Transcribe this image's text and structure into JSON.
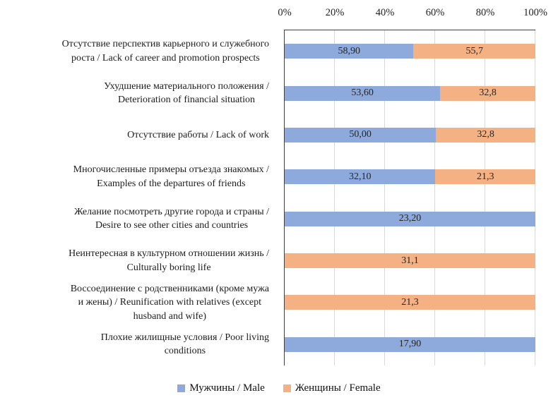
{
  "chart_data": {
    "type": "bar",
    "subtype": "stacked-100-percent",
    "orientation": "horizontal",
    "title": "",
    "x_axis": {
      "position": "top",
      "ticks": [
        "0%",
        "20%",
        "40%",
        "60%",
        "80%",
        "100%"
      ],
      "range": [
        0,
        100
      ],
      "gridlines": true
    },
    "colors": {
      "male": "#8EA9DB",
      "female": "#F4B183",
      "gridline": "#D9D9D9",
      "axis_line": "#404040",
      "text": "#1C1C1C"
    },
    "legend": {
      "position": "bottom",
      "items": [
        {
          "series": "male",
          "label": "Мужчины / Male"
        },
        {
          "series": "female",
          "label": "Женщины / Female"
        }
      ]
    },
    "rows": [
      {
        "category": "Отсутствие перспектив карьерного и служебного роста / Lack of career and promotion prospects",
        "category_lines": [
          "Отсутствие перспектив карьерного и служебного",
          "роста / Lack of career and promotion prospects"
        ],
        "segments": [
          {
            "series": "male",
            "value": 58.9,
            "label": "58,90"
          },
          {
            "series": "female",
            "value": 55.7,
            "label": "55,7"
          }
        ]
      },
      {
        "category": "Ухудшение материального положения / Deterioration of financial situation",
        "category_lines": [
          "Ухудшение материального положения /",
          "Deterioration of financial situation"
        ],
        "segments": [
          {
            "series": "male",
            "value": 53.6,
            "label": "53,60"
          },
          {
            "series": "female",
            "value": 32.8,
            "label": "32,8"
          }
        ]
      },
      {
        "category": "Отсутствие работы / Lack of work",
        "category_lines": [
          "Отсутствие работы / Lack of work"
        ],
        "segments": [
          {
            "series": "male",
            "value": 50.0,
            "label": "50,00"
          },
          {
            "series": "female",
            "value": 32.8,
            "label": "32,8"
          }
        ]
      },
      {
        "category": "Многочисленные примеры отъезда знакомых / Examples of the departures of friends",
        "category_lines": [
          "Многочисленные примеры отъезда знакомых /",
          "Examples of the departures of friends"
        ],
        "segments": [
          {
            "series": "male",
            "value": 32.1,
            "label": "32,10"
          },
          {
            "series": "female",
            "value": 21.3,
            "label": "21,3"
          }
        ]
      },
      {
        "category": "Желание посмотреть другие города и страны / Desire to see other cities and countries",
        "category_lines": [
          "Желание посмотреть другие города и страны /",
          "Desire to see other cities and countries"
        ],
        "segments": [
          {
            "series": "male",
            "value": 23.2,
            "label": "23,20"
          }
        ]
      },
      {
        "category": "Неинтересная в культурном отношении жизнь / Culturally boring life",
        "category_lines": [
          "Неинтересная в культурном отношении жизнь /",
          "Culturally boring life"
        ],
        "segments": [
          {
            "series": "female",
            "value": 31.1,
            "label": "31,1"
          }
        ]
      },
      {
        "category": "Воссоединение с родственниками (кроме мужа и жены) / Reunification with relatives (except husband and wife)",
        "category_lines": [
          "Воссоединение с родственниками (кроме мужа",
          "и жены) / Reunification with relatives (except",
          "husband and wife)"
        ],
        "segments": [
          {
            "series": "female",
            "value": 21.3,
            "label": "21,3"
          }
        ]
      },
      {
        "category": "Плохие жилищные условия / Poor living conditions",
        "category_lines": [
          "Плохие жилищные условия / Poor living",
          "conditions"
        ],
        "segments": [
          {
            "series": "male",
            "value": 17.9,
            "label": "17,90"
          }
        ]
      }
    ]
  }
}
